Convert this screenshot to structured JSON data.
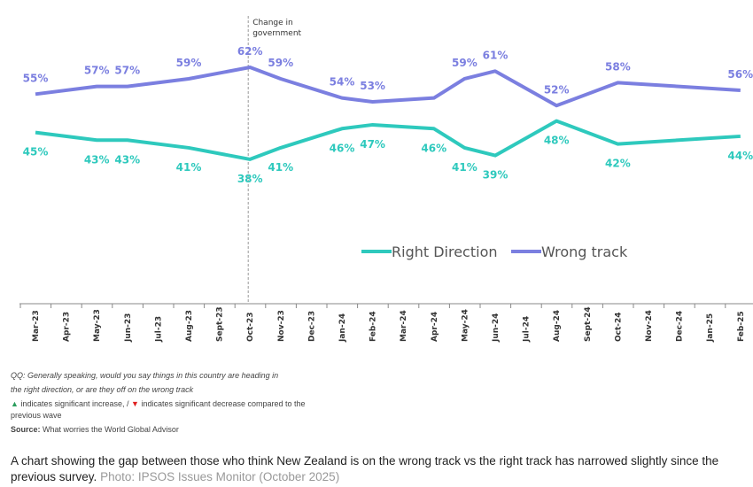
{
  "chart_data": {
    "type": "line",
    "categories": [
      "Mar-23",
      "Apr-23",
      "May-23",
      "Jun-23",
      "Jul-23",
      "Aug-23",
      "Sept-23",
      "Oct-23",
      "Nov-23",
      "Dec-23",
      "Jan-24",
      "Feb-24",
      "Mar-24",
      "Apr-24",
      "May-24",
      "Jun-24",
      "Jul-24",
      "Aug-24",
      "Sept-24",
      "Oct-24",
      "Nov-24",
      "Dec-24",
      "Jan-25",
      "Feb-25"
    ],
    "series": [
      {
        "name": "Right Direction",
        "color": "#2ec9bd",
        "points": [
          [
            "Mar-23",
            45
          ],
          [
            "May-23",
            43
          ],
          [
            "Jun-23",
            43
          ],
          [
            "Aug-23",
            41
          ],
          [
            "Oct-23",
            38
          ],
          [
            "Nov-23",
            41
          ],
          [
            "Jan-24",
            46
          ],
          [
            "Feb-24",
            47
          ],
          [
            "Apr-24",
            46
          ],
          [
            "May-24",
            41
          ],
          [
            "Jun-24",
            39
          ],
          [
            "Aug-24",
            48
          ],
          [
            "Oct-24",
            42
          ],
          [
            "Feb-25",
            44
          ]
        ]
      },
      {
        "name": "Wrong track",
        "color": "#7b7fe0",
        "points": [
          [
            "Mar-23",
            55
          ],
          [
            "May-23",
            57
          ],
          [
            "Jun-23",
            57
          ],
          [
            "Aug-23",
            59
          ],
          [
            "Oct-23",
            62
          ],
          [
            "Nov-23",
            59
          ],
          [
            "Jan-24",
            54
          ],
          [
            "Feb-24",
            53
          ],
          [
            "Apr-24",
            null
          ],
          [
            "May-24",
            59
          ],
          [
            "Jun-24",
            61
          ],
          [
            "Aug-24",
            52
          ],
          [
            "Oct-24",
            58
          ],
          [
            "Feb-25",
            56
          ]
        ]
      }
    ],
    "unlabeled_points": [
      {
        "series": "Wrong track",
        "x": "Apr-24",
        "approx": 54
      }
    ],
    "annotation": {
      "x": "Oct-23",
      "text_lines": [
        "Change in",
        "government"
      ]
    },
    "ylim": [
      30,
      70
    ],
    "legend": "center-right",
    "grid": false
  },
  "notes": {
    "question_1": "QQ: Generally speaking, would you say things in this country are heading in",
    "question_2": "the right direction, or are they off on the wrong track",
    "sig_increase": "indicates significant increase, /",
    "sig_decrease": "indicates significant decrease compared to the",
    "sig_decrease_2": "previous wave",
    "source_label": "Source:",
    "source_text": "What worries the World Global Advisor"
  },
  "caption": {
    "text": "A chart showing the gap between those who think New Zealand is on the wrong track vs the right track has narrowed slightly since the previous survey.",
    "credit": "Photo: IPSOS Issues Monitor (October 2025)"
  },
  "colors": {
    "up": "#2a9d5c",
    "down": "#e02020"
  }
}
